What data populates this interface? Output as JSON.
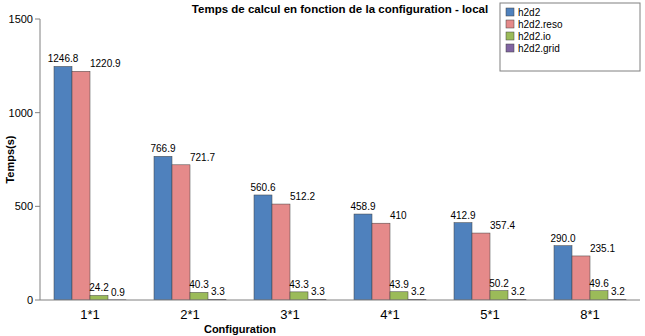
{
  "chart_data": {
    "type": "bar",
    "title": "Temps de calcul en fonction de la configuration - local",
    "x_label": "Configuration",
    "y_label": "Temps(s)",
    "categories": [
      "1*1",
      "2*1",
      "3*1",
      "4*1",
      "5*1",
      "8*1"
    ],
    "series": [
      {
        "name": "h2d2",
        "color": "#4f81bd",
        "values": [
          1246.8,
          766.9,
          560.6,
          458.9,
          412.9,
          290.0
        ],
        "value_labels": [
          "1246.8",
          "766.9",
          "560.6",
          "458.9",
          "412.9",
          "290.0"
        ]
      },
      {
        "name": "h2d2.reso",
        "color": "#e58a8a",
        "values": [
          1220.9,
          721.7,
          512.2,
          410,
          357.4,
          235.1
        ]
      },
      {
        "name": "h2d2.io",
        "color": "#9bbb59",
        "values": [
          24.2,
          40.3,
          43.3,
          43.9,
          50.2,
          49.6
        ]
      },
      {
        "name": "h2d2.grid",
        "color": "#8064a2",
        "values": [
          0.9,
          3.3,
          3.3,
          3.2,
          3.2,
          3.2
        ]
      }
    ],
    "ylim": [
      0,
      1500
    ],
    "yticks": [
      0,
      500,
      1000,
      1500
    ],
    "grid": false,
    "legend": "top-right",
    "data_labels": true
  }
}
